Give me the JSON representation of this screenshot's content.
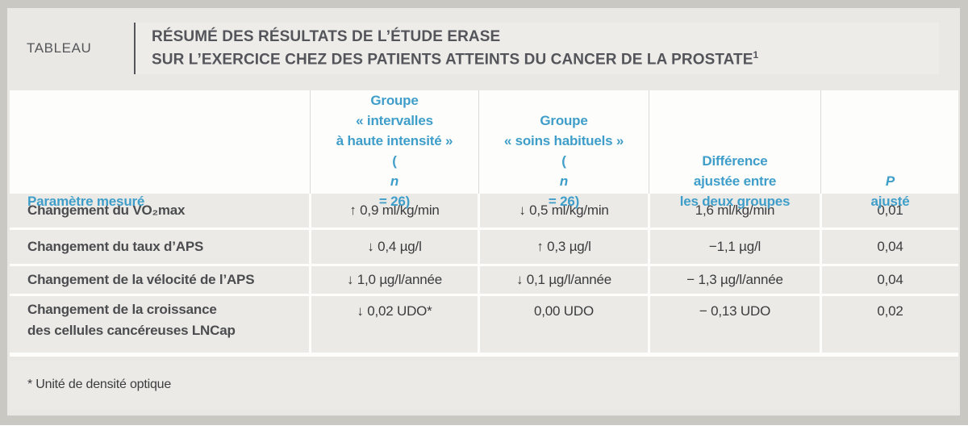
{
  "colors": {
    "accent_blue": "#3f9ec9",
    "frame_gray": "#c9c8c2",
    "panel_bg": "#e9e8e4",
    "cell_bg": "#ebeae6",
    "text_dark": "#3b3c3e",
    "label_gray": "#55565a"
  },
  "figure": {
    "kicker": "TABLEAU",
    "title_line1": "RÉSUMÉ DES RÉSULTATS DE L’ÉTUDE ERASE",
    "title_line2": "SUR L’EXERCICE CHEZ DES PATIENTS ATTEINTS DU CANCER DE LA PROSTATE",
    "title_superscript": "1"
  },
  "table": {
    "column_headers": [
      {
        "lines": [
          "Paramètre mesuré"
        ]
      },
      {
        "lines": [
          "Groupe",
          "« intervalles",
          "à haute intensité »",
          "(n = 26)"
        ]
      },
      {
        "lines": [
          "Groupe",
          "« soins habituels »",
          "(n = 26)"
        ]
      },
      {
        "lines": [
          "Différence",
          "ajustée entre",
          "les deux groupes"
        ]
      },
      {
        "lines": [
          "P ajusté"
        ]
      }
    ],
    "rows": [
      {
        "label_lines": [
          "Changement du VO₂max"
        ],
        "hiit": "↑ 0,9 ml/kg/min",
        "usual_care": "↓ 0,5 ml/kg/min",
        "difference": "1,6 ml/kg/min",
        "p": "0,01"
      },
      {
        "label_lines": [
          "Changement du taux d’APS"
        ],
        "hiit": "↓ 0,4 µg/l",
        "usual_care": "↑ 0,3 µg/l",
        "difference": "−1,1 µg/l",
        "p": "0,04"
      },
      {
        "label_lines": [
          "Changement de la vélocité de l’APS"
        ],
        "hiit": "↓ 1,0 µg/l/année",
        "usual_care": "↓ 0,1 µg/l/année",
        "difference": "− 1,3 µg/l/année",
        "p": "0,04"
      },
      {
        "label_lines": [
          "Changement de la croissance",
          "des cellules cancéreuses LNCap"
        ],
        "hiit": "↓ 0,02 UDO*",
        "usual_care": "0,00 UDO",
        "difference": "− 0,13 UDO",
        "p": "0,02"
      }
    ]
  },
  "footnote": "* Unité de densité optique"
}
